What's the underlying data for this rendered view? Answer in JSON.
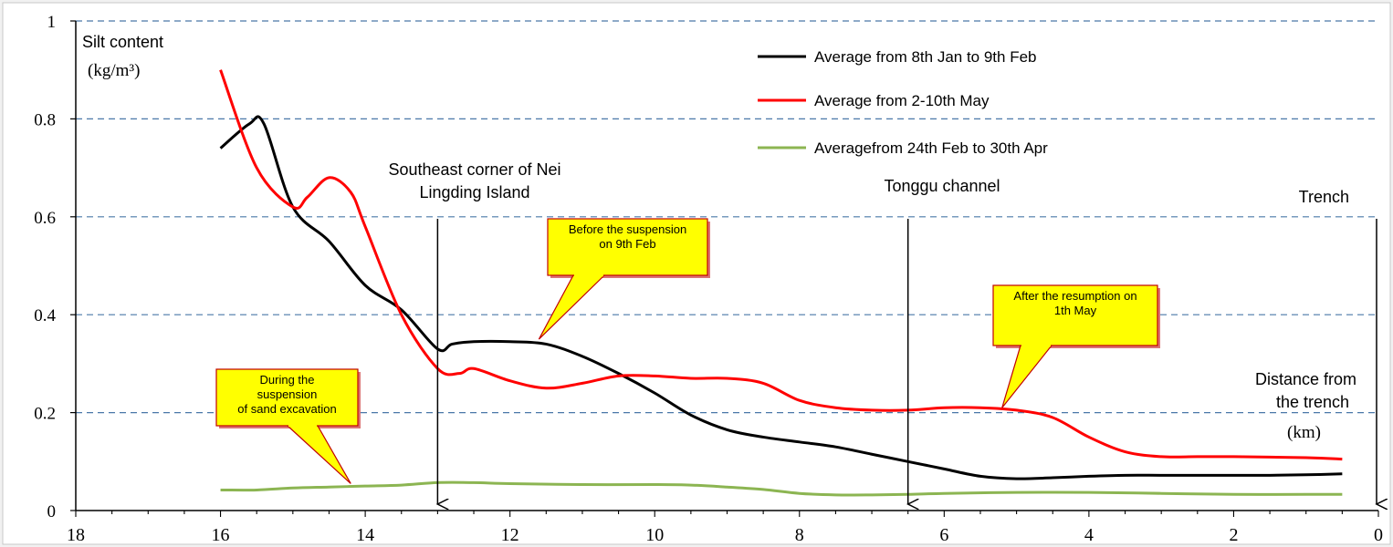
{
  "chart_data": {
    "type": "line",
    "title": "",
    "xlabel": "Distance from the trench",
    "xlabel_unit": "(km)",
    "ylabel": "Silt content",
    "ylabel_unit": "(kg/m³)",
    "xlim": [
      18,
      0
    ],
    "ylim": [
      0,
      1
    ],
    "x_ticks": [
      18,
      16,
      14,
      12,
      10,
      8,
      6,
      4,
      2,
      0
    ],
    "x_tick_labels": [
      "18",
      "16",
      "14",
      "12",
      "10",
      "8",
      "6",
      "4",
      "2",
      "0"
    ],
    "y_ticks": [
      0,
      0.2,
      0.4,
      0.6,
      0.8,
      1
    ],
    "y_tick_labels": [
      "0",
      "0.2",
      "0.4",
      "0.6",
      "0.8",
      "1"
    ],
    "grid": "horizontal dashed",
    "legend_position": "top-right",
    "series": [
      {
        "name": "Average from 8th Jan to 9th Feb",
        "color": "#000000",
        "x": [
          16,
          15.6,
          15.4,
          15,
          14.5,
          14,
          13.5,
          13,
          12.8,
          12.5,
          12,
          11.5,
          11,
          10.5,
          10,
          9.5,
          9,
          8.5,
          8,
          7.5,
          7,
          6.5,
          6,
          5.5,
          5,
          4.5,
          4,
          3.5,
          3,
          2.5,
          2,
          1.5,
          1,
          0.5
        ],
        "values": [
          0.74,
          0.79,
          0.79,
          0.62,
          0.55,
          0.46,
          0.41,
          0.33,
          0.34,
          0.345,
          0.345,
          0.34,
          0.315,
          0.28,
          0.24,
          0.195,
          0.165,
          0.15,
          0.14,
          0.13,
          0.115,
          0.1,
          0.085,
          0.07,
          0.065,
          0.067,
          0.07,
          0.072,
          0.072,
          0.072,
          0.072,
          0.072,
          0.073,
          0.075
        ]
      },
      {
        "name": "Average from 2-10th May",
        "color": "#ff0000",
        "x": [
          16,
          15.5,
          15,
          14.8,
          14.5,
          14.2,
          14,
          13.5,
          13,
          12.7,
          12.5,
          12,
          11.5,
          11,
          10.5,
          10,
          9.5,
          9,
          8.5,
          8,
          7.5,
          7,
          6.5,
          6,
          5.5,
          5,
          4.5,
          4,
          3.5,
          3,
          2.5,
          2,
          1,
          0.5
        ],
        "values": [
          0.9,
          0.7,
          0.62,
          0.64,
          0.68,
          0.65,
          0.58,
          0.4,
          0.29,
          0.28,
          0.29,
          0.265,
          0.25,
          0.26,
          0.275,
          0.275,
          0.27,
          0.27,
          0.26,
          0.225,
          0.21,
          0.205,
          0.205,
          0.21,
          0.21,
          0.205,
          0.19,
          0.15,
          0.12,
          0.11,
          0.11,
          0.11,
          0.108,
          0.105
        ]
      },
      {
        "name": "Averagefrom 24th Feb to 30th Apr",
        "color": "#8cb552",
        "x": [
          16,
          15.5,
          15,
          14.5,
          14,
          13.5,
          13,
          12.5,
          12,
          11,
          10,
          9.5,
          9,
          8.5,
          8,
          7.5,
          7,
          6.5,
          6,
          5,
          4,
          3,
          2,
          1,
          0.5
        ],
        "values": [
          0.042,
          0.042,
          0.046,
          0.048,
          0.05,
          0.052,
          0.057,
          0.057,
          0.055,
          0.053,
          0.053,
          0.052,
          0.048,
          0.043,
          0.035,
          0.032,
          0.032,
          0.033,
          0.035,
          0.037,
          0.037,
          0.035,
          0.033,
          0.033,
          0.033
        ]
      }
    ],
    "markers": [
      {
        "label": "Southeast corner of Nei Lingding Island",
        "x": 13,
        "label_lines": [
          "Southeast corner of Nei",
          "Lingding Island"
        ]
      },
      {
        "label": "Tonggu channel",
        "x": 6.5,
        "label_lines": [
          "Tonggu channel"
        ]
      },
      {
        "label": "Trench",
        "x": 0,
        "label_lines": [
          "Trench"
        ]
      }
    ],
    "callouts": [
      {
        "text": "During the suspension of sand excavation",
        "lines": [
          "During the",
          "suspension",
          "of sand excavation"
        ],
        "x": 14.2,
        "y": 0.055
      },
      {
        "text": "Before the suspension on 9th Feb",
        "lines": [
          "Before the suspension",
          "on 9th Feb"
        ],
        "x": 11.6,
        "y": 0.35
      },
      {
        "text": "After the resumption on 1th May",
        "lines": [
          "After the resumption on",
          "1th May"
        ],
        "x": 5.2,
        "y": 0.21
      }
    ]
  },
  "colors": {
    "background": "#f1f1f1",
    "grid": "#4a78a8",
    "callout_fill": "#ffff00",
    "callout_border": "#c00000"
  }
}
